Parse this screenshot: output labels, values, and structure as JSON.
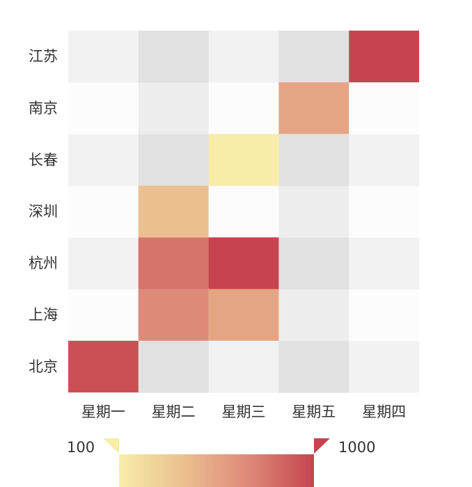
{
  "chart_data": {
    "type": "heatmap",
    "x_categories": [
      "星期一",
      "星期二",
      "星期三",
      "星期五",
      "星期四"
    ],
    "y_categories": [
      "北京",
      "上海",
      "杭州",
      "深圳",
      "长春",
      "南京",
      "江苏"
    ],
    "cells": [
      {
        "x": "星期一",
        "y": "北京",
        "value": 950
      },
      {
        "x": "星期二",
        "y": "上海",
        "value": 700
      },
      {
        "x": "星期三",
        "y": "上海",
        "value": 550
      },
      {
        "x": "星期二",
        "y": "杭州",
        "value": 800
      },
      {
        "x": "星期三",
        "y": "杭州",
        "value": 1000
      },
      {
        "x": "星期二",
        "y": "深圳",
        "value": 400
      },
      {
        "x": "星期三",
        "y": "长春",
        "value": 100
      },
      {
        "x": "星期五",
        "y": "南京",
        "value": 550
      },
      {
        "x": "星期四",
        "y": "江苏",
        "value": 1000
      }
    ],
    "visual_map": {
      "min": 100,
      "max": 1000,
      "min_label": "100",
      "max_label": "1000",
      "colors": [
        "#f7eda8",
        "#ebbf8f",
        "#de8a79",
        "#c6444f"
      ]
    },
    "background_colors": [
      "#f2f2f2",
      "#e1e1e1",
      "#fcfcfc",
      "#ededed"
    ]
  }
}
